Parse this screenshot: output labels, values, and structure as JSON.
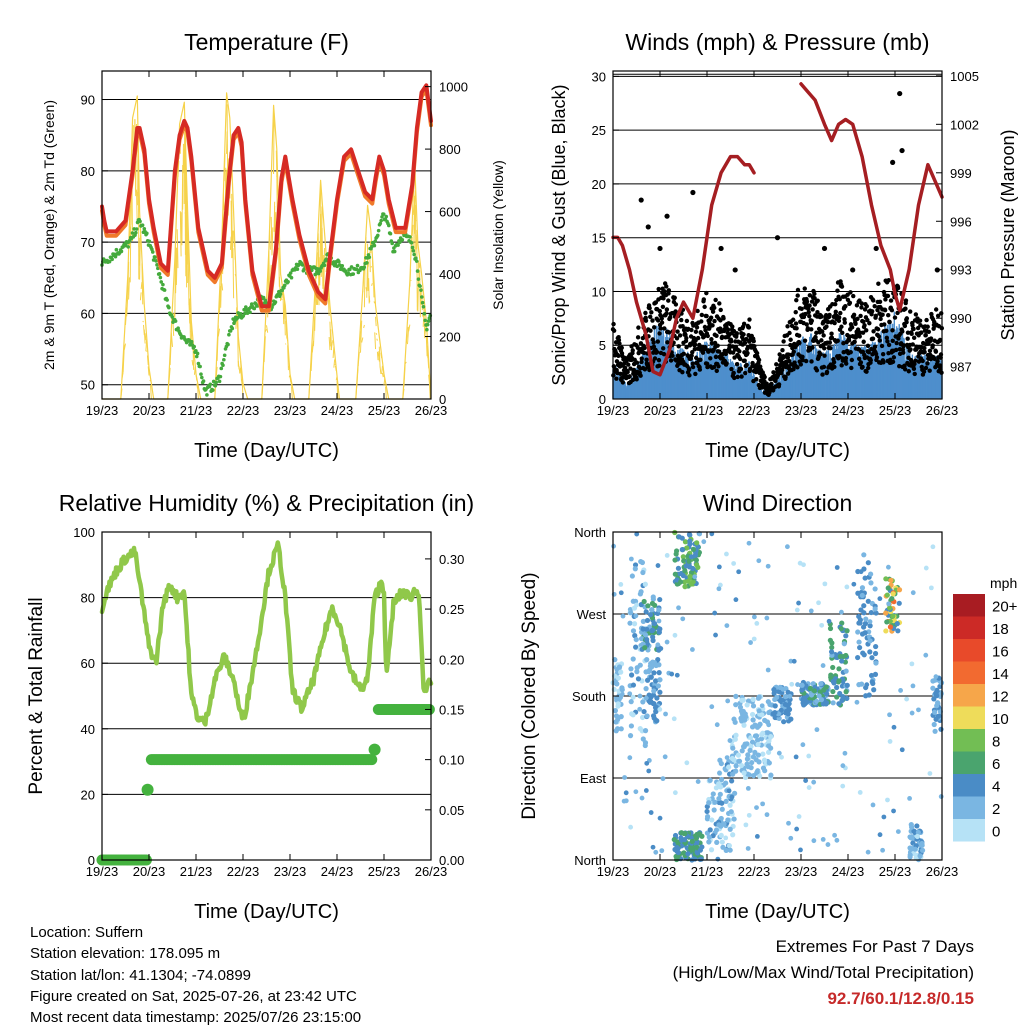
{
  "colors": {
    "t2m": "#d62a24",
    "t9m": "#f07a2a",
    "td": "#44aa3c",
    "solar": "#f6d24a",
    "gust": "#000000",
    "wind": "#4e8fcc",
    "pressure": "#a51e22",
    "rh": "#90c84a",
    "precip": "#44b23e",
    "extremes": "#c62a2a"
  },
  "chart_data": [
    {
      "type": "line",
      "title": "Temperature (F)",
      "xlabel": "Time (Day/UTC)",
      "ylabel": "2m & 9m T (Red, Orange) & 2m Td (Green)",
      "y2label": "Solar Insolation (Yellow)",
      "x_ticks": [
        "19/23",
        "20/23",
        "21/23",
        "22/23",
        "23/23",
        "24/23",
        "25/23",
        "26/23"
      ],
      "xlim": [
        0,
        7
      ],
      "ylim": [
        48,
        94
      ],
      "y_ticks": [
        50,
        60,
        70,
        80,
        90
      ],
      "y2lim": [
        0,
        1050
      ],
      "y2_ticks": [
        0,
        200,
        400,
        600,
        800,
        1000
      ],
      "grid": "horizontal",
      "series": [
        {
          "name": "2m T",
          "axis": "left",
          "x": [
            0,
            0.05,
            0.1,
            0.3,
            0.5,
            0.65,
            0.75,
            0.8,
            0.9,
            1.0,
            1.1,
            1.25,
            1.4,
            1.55,
            1.65,
            1.75,
            1.82,
            1.9,
            2.05,
            2.25,
            2.4,
            2.55,
            2.7,
            2.8,
            2.9,
            2.97,
            3.05,
            3.2,
            3.4,
            3.55,
            3.7,
            3.82,
            3.9,
            3.95,
            4.05,
            4.2,
            4.4,
            4.6,
            4.75,
            4.85,
            5.0,
            5.15,
            5.3,
            5.45,
            5.6,
            5.75,
            5.82,
            5.9,
            6.0,
            6.1,
            6.25,
            6.45,
            6.6,
            6.7,
            6.8,
            6.9,
            7.0
          ],
          "y": [
            75,
            73,
            71.5,
            71.5,
            73,
            80,
            86,
            86,
            83,
            76,
            72,
            67,
            66,
            80,
            85,
            87,
            86,
            82,
            72,
            66,
            65,
            67,
            79,
            85,
            86,
            84,
            76,
            66,
            61,
            61,
            69,
            79,
            82,
            80,
            76,
            71,
            66,
            63,
            62,
            68,
            76,
            82,
            83,
            80,
            77,
            76,
            79,
            82,
            80,
            76,
            72,
            72,
            78,
            86,
            91,
            92,
            87
          ]
        },
        {
          "name": "2m T (cont.)",
          "axis": "left",
          "x": [
            6.0,
            6.1,
            6.25,
            6.4,
            6.5,
            6.55,
            6.6,
            6.7,
            6.8,
            6.9,
            7.0
          ],
          "y": [
            87,
            82,
            76,
            73,
            71,
            73,
            78,
            82,
            80,
            78,
            77
          ]
        },
        {
          "name": "2m Td",
          "axis": "left",
          "x": [
            0,
            0.2,
            0.4,
            0.6,
            0.8,
            1.0,
            1.2,
            1.4,
            1.6,
            1.8,
            2.0,
            2.2,
            2.4,
            2.5,
            2.6,
            2.8,
            3.0,
            3.2,
            3.4,
            3.6,
            3.8,
            4.0,
            4.2,
            4.4,
            4.6,
            4.8,
            5.0,
            5.2,
            5.4,
            5.6,
            5.8,
            6.0,
            6.1,
            6.2,
            6.4,
            6.6,
            6.7,
            6.8,
            6.9,
            7.0
          ],
          "y": [
            67,
            68,
            69,
            70,
            73,
            70,
            66,
            61,
            58,
            56,
            55,
            49,
            50,
            51,
            54,
            59,
            60,
            61,
            62,
            61,
            63,
            65,
            67,
            66,
            66,
            68,
            67,
            66,
            66,
            67,
            70,
            74,
            72,
            69,
            71,
            70,
            67,
            62,
            58,
            60
          ]
        },
        {
          "name": "Solar",
          "axis": "right",
          "x": [
            0,
            0.4,
            0.55,
            0.65,
            0.75,
            0.8,
            0.9,
            1.0,
            1.1,
            1.4,
            1.55,
            1.65,
            1.75,
            1.8,
            1.9,
            2.0,
            2.1,
            2.4,
            2.55,
            2.65,
            2.72,
            2.8,
            2.9,
            3.0,
            3.1,
            3.4,
            3.55,
            3.65,
            3.72,
            3.8,
            3.9,
            4.0,
            4.1,
            4.4,
            4.55,
            4.65,
            4.75,
            4.85,
            4.95,
            5.05,
            5.4,
            5.55,
            5.65,
            5.72,
            5.82,
            5.9,
            6.0,
            6.1,
            6.4,
            6.55,
            6.65,
            6.72,
            6.8,
            6.9,
            7.0
          ],
          "y": [
            0,
            0,
            400,
            900,
            970,
            600,
            300,
            100,
            0,
            0,
            450,
            880,
            950,
            700,
            250,
            80,
            0,
            0,
            500,
            980,
            900,
            600,
            200,
            50,
            0,
            0,
            480,
            940,
            800,
            400,
            300,
            80,
            0,
            0,
            400,
            700,
            500,
            300,
            150,
            0,
            0,
            350,
            620,
            540,
            300,
            200,
            80,
            0,
            0,
            380,
            760,
            500,
            400,
            250,
            0
          ]
        }
      ]
    },
    {
      "type": "scatter",
      "title": "Winds (mph) & Pressure (mb)",
      "xlabel": "Time (Day/UTC)",
      "ylabel": "Sonic/Prop Wind & Gust (Blue, Black)",
      "y2label": "Station Pressure (Maroon)",
      "x_ticks": [
        "19/23",
        "20/23",
        "21/23",
        "22/23",
        "23/23",
        "24/23",
        "25/23",
        "26/23"
      ],
      "xlim": [
        0,
        7
      ],
      "ylim": [
        0,
        30.5
      ],
      "y_ticks": [
        0,
        5,
        10,
        15,
        20,
        25,
        30
      ],
      "y2lim": [
        985,
        1005.3
      ],
      "y2_ticks": [
        987,
        990,
        993,
        996,
        999,
        1002,
        1005
      ],
      "grid": "horizontal",
      "gust_profile": {
        "x": [
          0,
          0.3,
          0.6,
          0.9,
          1.1,
          1.4,
          1.7,
          2.0,
          2.3,
          2.6,
          2.9,
          3.1,
          3.3,
          3.6,
          3.9,
          4.2,
          4.5,
          4.8,
          5.1,
          5.4,
          5.7,
          6.0,
          6.3,
          6.6,
          7.0
        ],
        "y": [
          6,
          3,
          6,
          8,
          9,
          7,
          6,
          8,
          7,
          5,
          6,
          3,
          1,
          4,
          8,
          9,
          6,
          9,
          8,
          7,
          9,
          9,
          7,
          6,
          7
        ]
      },
      "wind_profile": {
        "x": [
          0,
          0.3,
          0.6,
          0.9,
          1.1,
          1.4,
          1.7,
          2.0,
          2.3,
          2.6,
          2.9,
          3.1,
          3.3,
          3.6,
          3.9,
          4.2,
          4.5,
          4.8,
          5.1,
          5.4,
          5.7,
          6.0,
          6.3,
          6.6,
          7.0
        ],
        "y": [
          2.5,
          1,
          3,
          5,
          5,
          3.5,
          3,
          4,
          3.5,
          2.5,
          2.5,
          1,
          0.3,
          2,
          4,
          4.5,
          3,
          4.5,
          4,
          3.5,
          4.5,
          6,
          3.5,
          3,
          3
        ]
      },
      "gust_outliers": {
        "x": [
          0.6,
          0.75,
          1.0,
          1.15,
          1.7,
          2.3,
          2.6,
          3.5,
          4.5,
          5.1,
          5.6,
          5.95,
          6.1,
          6.15,
          6.9
        ],
        "y": [
          18.5,
          16,
          14,
          17,
          19.2,
          14,
          12,
          15,
          14,
          12,
          14,
          22,
          28.4,
          23.1,
          12
        ]
      },
      "pressure_segments": [
        {
          "x": [
            0,
            0.1,
            0.2,
            0.35,
            0.5,
            0.7,
            0.85,
            1.0,
            1.2,
            1.35,
            1.5,
            1.7,
            1.9,
            2.1,
            2.3,
            2.5,
            2.65,
            2.8,
            2.9,
            3.0
          ],
          "y": [
            995,
            995,
            994.5,
            993,
            991,
            989,
            986.7,
            986.5,
            988,
            990,
            991,
            990,
            993,
            997,
            999,
            1000,
            1000,
            999.5,
            999.5,
            999
          ]
        },
        {
          "x": [
            4.0,
            4.15,
            4.3,
            4.5,
            4.65,
            4.8,
            4.95,
            5.1,
            5.3,
            5.5,
            5.7,
            5.9,
            6.0,
            6.1,
            6.3,
            6.5,
            6.7,
            6.85,
            7.0
          ],
          "y": [
            1004.5,
            1004,
            1003.5,
            1002,
            1001,
            1002,
            1002.3,
            1002,
            1000,
            997,
            994.5,
            993,
            991.5,
            990.5,
            993,
            997,
            999.5,
            998.5,
            997.5
          ]
        }
      ]
    },
    {
      "type": "line",
      "title": "Relative Humidity (%) & Precipitation (in)",
      "xlabel": "Time (Day/UTC)",
      "ylabel": "Percent & Total Rainfall",
      "x_ticks": [
        "19/23",
        "20/23",
        "21/23",
        "22/23",
        "23/23",
        "24/23",
        "25/23",
        "26/23"
      ],
      "xlim": [
        0,
        7
      ],
      "ylim": [
        0,
        100
      ],
      "y_ticks": [
        0,
        20,
        40,
        60,
        80,
        100
      ],
      "y2lim": [
        0,
        0.3268
      ],
      "y2_ticks": [
        "0.00",
        "0.05",
        "0.10",
        "0.15",
        "0.20",
        "0.25",
        "0.30"
      ],
      "grid": "horizontal",
      "series": [
        {
          "name": "RH",
          "axis": "left",
          "x": [
            0,
            0.1,
            0.3,
            0.5,
            0.7,
            0.85,
            1.0,
            1.15,
            1.3,
            1.45,
            1.6,
            1.75,
            1.9,
            2.05,
            2.2,
            2.4,
            2.6,
            2.8,
            2.95,
            3.05,
            3.3,
            3.55,
            3.75,
            3.9,
            4.05,
            4.25,
            4.5,
            4.75,
            4.9,
            5.05,
            5.3,
            5.5,
            5.65,
            5.8,
            5.95,
            6.0,
            6.05,
            6.2,
            6.4,
            6.55,
            6.65,
            6.75,
            6.85,
            7.0
          ],
          "y": [
            77,
            82,
            88,
            92,
            94,
            80,
            65,
            60,
            78,
            84,
            80,
            82,
            50,
            43,
            42,
            55,
            62,
            55,
            44,
            45,
            65,
            88,
            96,
            80,
            52,
            46,
            55,
            70,
            77,
            72,
            57,
            52,
            55,
            80,
            85,
            82,
            55,
            78,
            82,
            80,
            82,
            81,
            50,
            55
          ]
        },
        {
          "name": "Precip",
          "axis": "right",
          "x": [
            0,
            0.95,
            1.0,
            1.05,
            5.75,
            5.8,
            5.85,
            7.0
          ],
          "y": [
            0,
            0,
            0.07,
            0.1,
            0.1,
            0.11,
            0.15,
            0.15
          ]
        }
      ]
    },
    {
      "type": "scatter",
      "title": "Wind Direction",
      "xlabel": "Time (Day/UTC)",
      "ylabel": "Direction (Colored By Speed)",
      "x_ticks": [
        "19/23",
        "20/23",
        "21/23",
        "22/23",
        "23/23",
        "24/23",
        "25/23",
        "26/23"
      ],
      "xlim": [
        0,
        7
      ],
      "ylim": [
        0,
        360
      ],
      "y_ticks": [
        "North",
        "East",
        "South",
        "West",
        "North"
      ],
      "grid": "horizontal",
      "legend": {
        "title": "mph",
        "labels": [
          "20+",
          "18",
          "16",
          "14",
          "12",
          "10",
          "8",
          "6",
          "4",
          "2",
          "0"
        ],
        "colors": [
          "#a81c22",
          "#cc2a26",
          "#e84a2a",
          "#f26a30",
          "#f6a64a",
          "#eedc5a",
          "#72be54",
          "#4aa46e",
          "#4a8cc6",
          "#7ab6e2",
          "#b6e2f6"
        ],
        "placement": "right"
      },
      "clusters": [
        {
          "x": [
            0.0,
            0.2
          ],
          "dir": [
            140,
            220
          ],
          "speed": [
            0,
            3
          ]
        },
        {
          "x": [
            0.35,
            0.7
          ],
          "dir": [
            120,
            340
          ],
          "speed": [
            0,
            4
          ]
        },
        {
          "x": [
            0.6,
            1.0
          ],
          "dir": [
            230,
            290
          ],
          "speed": [
            2,
            6
          ]
        },
        {
          "x": [
            0.7,
            1.0
          ],
          "dir": [
            150,
            220
          ],
          "speed": [
            2,
            5
          ]
        },
        {
          "x": [
            1.3,
            1.85
          ],
          "dir": [
            300,
            360
          ],
          "speed": [
            3,
            8
          ]
        },
        {
          "x": [
            1.3,
            1.9
          ],
          "dir": [
            0,
            30
          ],
          "speed": [
            3,
            7
          ]
        },
        {
          "x": [
            2.0,
            2.6
          ],
          "dir": [
            10,
            110
          ],
          "speed": [
            0,
            4
          ]
        },
        {
          "x": [
            2.5,
            3.4
          ],
          "dir": [
            90,
            180
          ],
          "speed": [
            0,
            3
          ]
        },
        {
          "x": [
            3.4,
            3.8
          ],
          "dir": [
            150,
            190
          ],
          "speed": [
            2,
            5
          ]
        },
        {
          "x": [
            4.0,
            4.6
          ],
          "dir": [
            170,
            195
          ],
          "speed": [
            2,
            6
          ]
        },
        {
          "x": [
            4.6,
            5.0
          ],
          "dir": [
            170,
            260
          ],
          "speed": [
            2,
            7
          ]
        },
        {
          "x": [
            5.2,
            5.6
          ],
          "dir": [
            180,
            340
          ],
          "speed": [
            2,
            5
          ]
        },
        {
          "x": [
            5.8,
            6.1
          ],
          "dir": [
            250,
            310
          ],
          "speed": [
            3,
            14
          ]
        },
        {
          "x": [
            6.3,
            6.6
          ],
          "dir": [
            0,
            40
          ],
          "speed": [
            0,
            4
          ]
        },
        {
          "x": [
            6.8,
            7.0
          ],
          "dir": [
            140,
            200
          ],
          "speed": [
            1,
            4
          ]
        }
      ]
    }
  ],
  "info": {
    "location": "Location: Suffern",
    "elevation": "Station elevation: 178.095 m",
    "latlon": "Station lat/lon: 41.1304; -74.0899",
    "created": "Figure created on Sat, 2025-07-26, at 23:42 UTC",
    "recent": "Most recent data timestamp: 2025/07/26 23:15:00"
  },
  "extremes": {
    "title": "Extremes For Past 7 Days",
    "subtitle": "(High/Low/Max Wind/Total Precipitation)",
    "values": "92.7/60.1/12.8/0.15"
  }
}
